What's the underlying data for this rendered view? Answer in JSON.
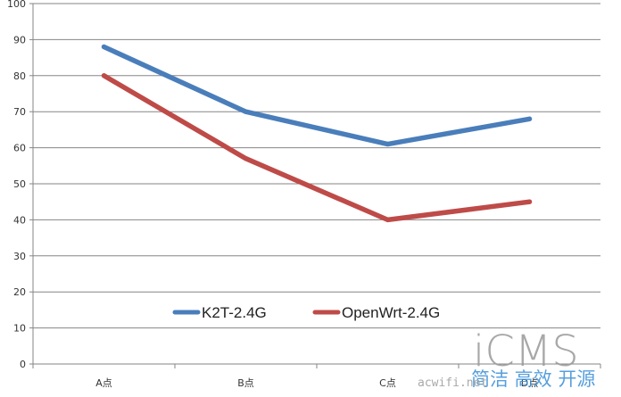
{
  "chart_data": {
    "type": "line",
    "categories": [
      "A点",
      "B点",
      "C点",
      "D点"
    ],
    "series": [
      {
        "name": "K2T-2.4G",
        "values": [
          88,
          70,
          61,
          68
        ],
        "color": "#4a7ebb"
      },
      {
        "name": "OpenWrt-2.4G",
        "values": [
          80,
          57,
          40,
          45
        ],
        "color": "#be4b48"
      }
    ],
    "ylim": [
      0,
      100
    ],
    "yticks": [
      0,
      10,
      20,
      30,
      40,
      50,
      60,
      70,
      80,
      90,
      100
    ],
    "grid": true,
    "legend_position": "bottom-center"
  },
  "watermark": {
    "brand": "iCMS",
    "slogan": "简洁 高效 开源",
    "url": "acwifi.net"
  }
}
